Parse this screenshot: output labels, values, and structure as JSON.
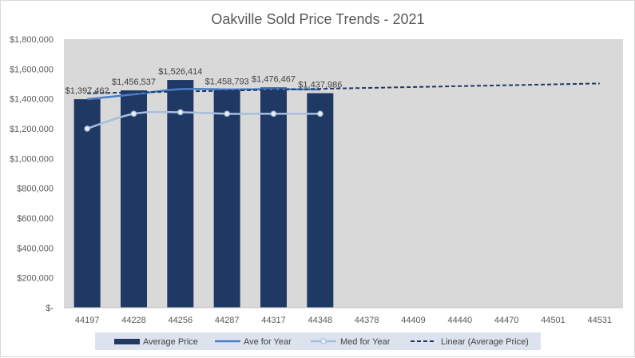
{
  "chart_data": {
    "type": "bar",
    "title": "Oakville Sold Price Trends - 2021",
    "categories": [
      "44197",
      "44228",
      "44256",
      "44287",
      "44317",
      "44348",
      "44378",
      "44409",
      "44440",
      "44470",
      "44501",
      "44531"
    ],
    "y_tick_labels": [
      "$-",
      "$200,000",
      "$400,000",
      "$600,000",
      "$800,000",
      "$1,000,000",
      "$1,200,000",
      "$1,400,000",
      "$1,600,000",
      "$1,800,000"
    ],
    "ylim": [
      0,
      1800000
    ],
    "series": [
      {
        "name": "Average Price",
        "kind": "bar",
        "color": "#1f3864",
        "values": [
          1397462,
          1456537,
          1526414,
          1458793,
          1476467,
          1437986,
          null,
          null,
          null,
          null,
          null,
          null
        ],
        "data_labels": [
          "$1,397,462",
          "$1,456,537",
          "$1,526,414",
          "$1,458,793",
          "$1,476,467",
          "$1,437,986"
        ]
      },
      {
        "name": "Ave for Year",
        "kind": "line",
        "color": "#4a7fc8",
        "values": [
          1397462,
          1430000,
          1465000,
          1463000,
          1465000,
          1462000,
          null,
          null,
          null,
          null,
          null,
          null
        ]
      },
      {
        "name": "Med for Year",
        "kind": "line-markers",
        "color": "#a6bfe0",
        "values": [
          1200000,
          1300000,
          1310000,
          1300000,
          1300000,
          1300000,
          null,
          null,
          null,
          null,
          null,
          null
        ]
      },
      {
        "name": "Linear (Average Price)",
        "kind": "trendline",
        "color": "#1f3864",
        "values": [
          1437000,
          1443000,
          1449000,
          1455000,
          1461000,
          1467000,
          1473000,
          1479000,
          1485000,
          1491000,
          1497000,
          1503000
        ]
      }
    ],
    "grid": false,
    "plot_background": "#d9d9d9",
    "legend": "bottom"
  }
}
